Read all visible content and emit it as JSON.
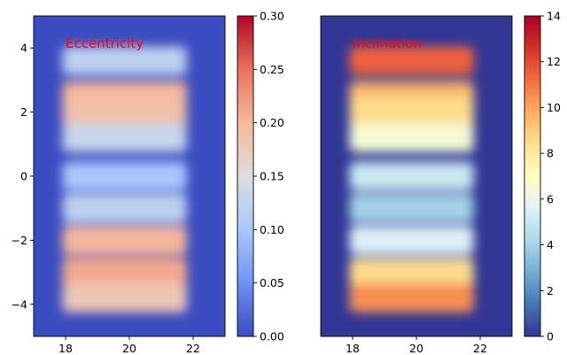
{
  "chart_data": [
    {
      "type": "heatmap",
      "annotation": "Eccentricity",
      "annotation_color": "#ff0000",
      "colormap": "coolwarm",
      "background_value": 0.0,
      "xlim": [
        17,
        23
      ],
      "ylim": [
        -5,
        5
      ],
      "xticks": [
        "18",
        "20",
        "22"
      ],
      "yticks": [
        "−4",
        "−2",
        "0",
        "2",
        "4"
      ],
      "colorbar": {
        "range": [
          0.0,
          0.3
        ],
        "ticks": [
          "0.00",
          "0.05",
          "0.10",
          "0.15",
          "0.20",
          "0.25",
          "0.30"
        ]
      },
      "bands": [
        {
          "y": 3.6,
          "value": 0.12
        },
        {
          "y": 2.5,
          "value": 0.2
        },
        {
          "y": 2.0,
          "value": 0.19
        },
        {
          "y": 1.2,
          "value": 0.13
        },
        {
          "y": 0.0,
          "value": 0.1
        },
        {
          "y": -1.0,
          "value": 0.12
        },
        {
          "y": -2.0,
          "value": 0.2
        },
        {
          "y": -3.0,
          "value": 0.21
        },
        {
          "y": -3.8,
          "value": 0.18
        }
      ]
    },
    {
      "type": "heatmap",
      "annotation": "Inclination",
      "annotation_color": "#ff0000",
      "colormap": "RdYlBu_r",
      "background_value": 0,
      "xlim": [
        17,
        23
      ],
      "ylim": [
        -5,
        5
      ],
      "xticks": [
        "18",
        "20",
        "22"
      ],
      "yticks": [],
      "colorbar": {
        "range": [
          0,
          14
        ],
        "ticks": [
          "0",
          "2",
          "4",
          "6",
          "8",
          "10",
          "12",
          "14"
        ]
      },
      "bands": [
        {
          "y": 3.6,
          "value": 11.5
        },
        {
          "y": 2.5,
          "value": 9.5
        },
        {
          "y": 2.0,
          "value": 8.5
        },
        {
          "y": 1.2,
          "value": 6.5
        },
        {
          "y": 0.0,
          "value": 5.0
        },
        {
          "y": -1.0,
          "value": 4.0
        },
        {
          "y": -2.0,
          "value": 5.5
        },
        {
          "y": -3.0,
          "value": 8.5
        },
        {
          "y": -3.8,
          "value": 10.5
        }
      ]
    }
  ],
  "colors": {
    "coolwarm": [
      "#3b4cc0",
      "#6f92f3",
      "#aac7fd",
      "#dddddd",
      "#f7b89c",
      "#e7745b",
      "#b40426"
    ],
    "RdYlBu_r": [
      "#313695",
      "#4575b4",
      "#74add1",
      "#abd9e9",
      "#e0f3f8",
      "#ffffbf",
      "#fee090",
      "#fdae61",
      "#f46d43",
      "#d73027",
      "#a50026"
    ]
  }
}
